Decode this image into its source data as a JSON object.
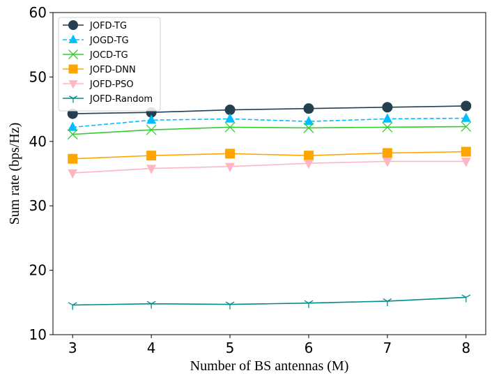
{
  "chart_data": {
    "type": "line",
    "title": "",
    "xlabel": "Number of BS antennas (M)",
    "ylabel": "Sum rate (bps/Hz)",
    "x": [
      3,
      4,
      5,
      6,
      7,
      8
    ],
    "xlim": [
      2.75,
      8.25
    ],
    "ylim": [
      10,
      60
    ],
    "xticks": [
      3,
      4,
      5,
      6,
      7,
      8
    ],
    "yticks": [
      10,
      20,
      30,
      40,
      50,
      60
    ],
    "grid": false,
    "legend_position": "top-left",
    "series": [
      {
        "name": "JOFD-TG",
        "values": [
          44.3,
          44.5,
          44.9,
          45.1,
          45.3,
          45.5
        ],
        "color": "#243f4f",
        "marker": "circle",
        "dash": "solid"
      },
      {
        "name": "JOGD-TG",
        "values": [
          42.2,
          43.3,
          43.5,
          43.1,
          43.5,
          43.6
        ],
        "color": "#00bfff",
        "marker": "triangle-up",
        "dash": "dashed"
      },
      {
        "name": "JOCD-TG",
        "values": [
          41.1,
          41.8,
          42.2,
          42.1,
          42.2,
          42.3
        ],
        "color": "#32cd32",
        "marker": "x",
        "dash": "solid"
      },
      {
        "name": "JOFD-DNN",
        "values": [
          37.3,
          37.8,
          38.1,
          37.8,
          38.2,
          38.4
        ],
        "color": "#ffa500",
        "marker": "square",
        "dash": "solid"
      },
      {
        "name": "JOFD-PSO",
        "values": [
          35.1,
          35.8,
          36.1,
          36.6,
          36.9,
          36.9
        ],
        "color": "#ffb6c1",
        "marker": "triangle-down",
        "dash": "solid"
      },
      {
        "name": "JOFD-Random",
        "values": [
          14.6,
          14.8,
          14.7,
          14.9,
          15.2,
          15.8
        ],
        "color": "#008b8b",
        "marker": "tri-down",
        "dash": "solid"
      }
    ]
  }
}
